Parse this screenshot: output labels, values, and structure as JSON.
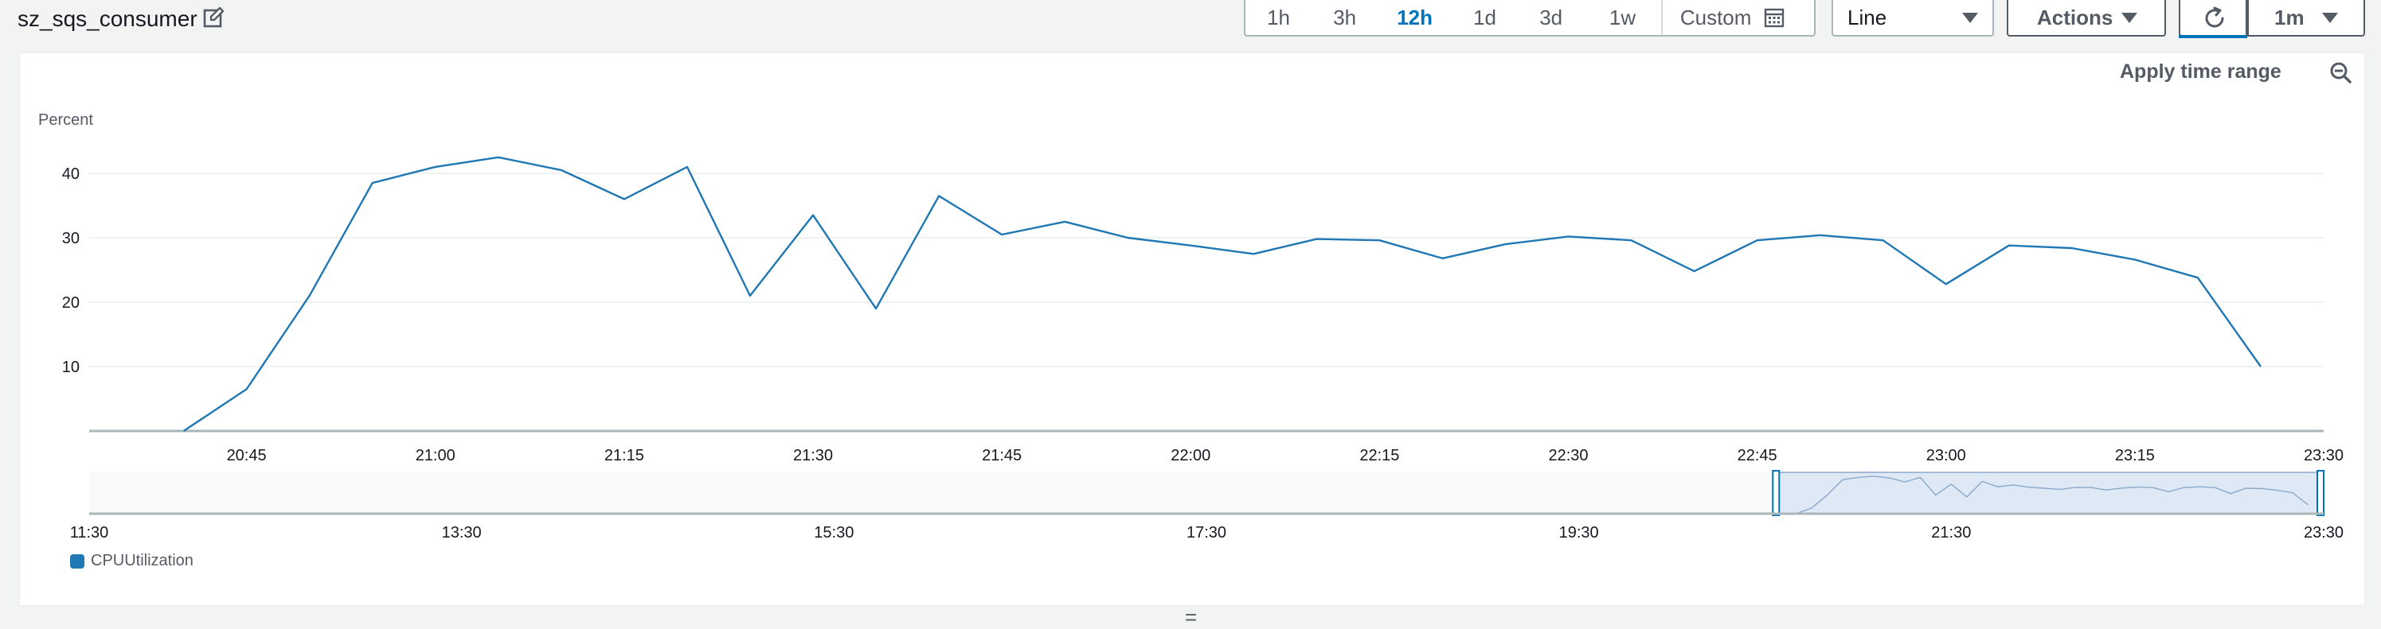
{
  "widget": {
    "title": "sz_sqs_consumer"
  },
  "time_range": {
    "options": [
      "1h",
      "3h",
      "12h",
      "1d",
      "3d",
      "1w"
    ],
    "active": "12h",
    "custom_label": "Custom"
  },
  "controls": {
    "chart_type": "Line",
    "actions_label": "Actions",
    "period": "1m",
    "apply_label": "Apply time range"
  },
  "colors": {
    "series": "#1f77b4",
    "accent": "#0073bb"
  },
  "chart_data": {
    "type": "line",
    "ylabel": "Percent",
    "y_ticks": [
      10,
      20,
      30,
      40
    ],
    "ylim": [
      0,
      45
    ],
    "x_ticks": [
      "20:45",
      "21:00",
      "21:15",
      "21:30",
      "21:45",
      "22:00",
      "22:15",
      "22:30",
      "22:45",
      "23:00",
      "23:15",
      "23:30"
    ],
    "xlim": [
      "20:32:30",
      "23:30"
    ],
    "series": [
      {
        "name": "CPUUtilization",
        "x": [
          "20:40",
          "20:45",
          "20:50",
          "20:55",
          "21:00",
          "21:05",
          "21:10",
          "21:15",
          "21:20",
          "21:25",
          "21:30",
          "21:35",
          "21:40",
          "21:45",
          "21:50",
          "21:55",
          "22:00",
          "22:05",
          "22:10",
          "22:15",
          "22:20",
          "22:25",
          "22:30",
          "22:35",
          "22:40",
          "22:45",
          "22:50",
          "22:55",
          "23:00",
          "23:05",
          "23:10",
          "23:15",
          "23:20",
          "23:25"
        ],
        "values": [
          0,
          6.5,
          21,
          38.5,
          41,
          42.5,
          40.5,
          36,
          41,
          21,
          33.5,
          19,
          36.5,
          30.5,
          32.5,
          30,
          28.8,
          27.5,
          29.8,
          29.6,
          26.8,
          29,
          30.2,
          29.6,
          24.8,
          29.6,
          30.4,
          29.6,
          22.8,
          28.8,
          28.4,
          26.6,
          23.8,
          10
        ]
      }
    ],
    "overview": {
      "x_ticks": [
        "11:30",
        "13:30",
        "15:30",
        "17:30",
        "19:30",
        "21:30",
        "23:30"
      ],
      "xlim": [
        "11:30",
        "23:30"
      ],
      "selection": [
        "20:32:30",
        "23:30"
      ]
    }
  }
}
